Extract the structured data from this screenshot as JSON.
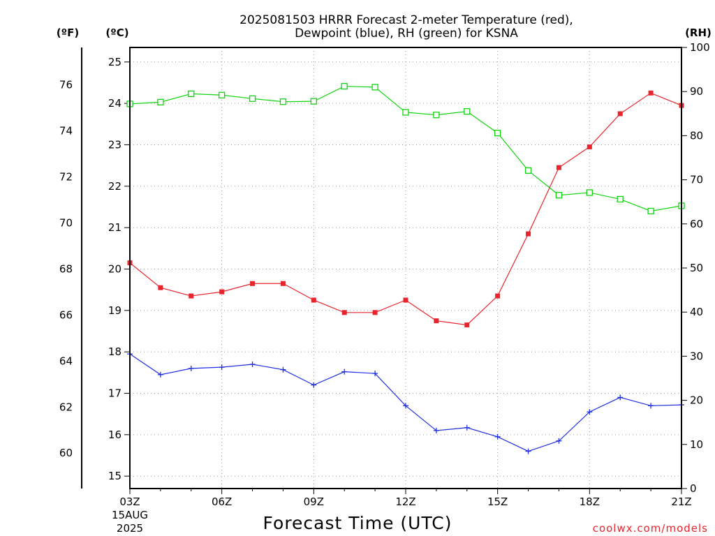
{
  "title_line1": "2025081503 HRRR Forecast 2-meter Temperature (red),",
  "title_line2": "Dewpoint (blue), RH (green) for KSNA",
  "units": {
    "fahrenheit": "(ºF)",
    "celsius": "(ºC)",
    "rh": "(RH)"
  },
  "x_axis_title": "Forecast Time (UTC)",
  "credit": "coolwx.com/models",
  "x_date_label": [
    "15AUG",
    "2025"
  ],
  "colors": {
    "temperature": "#e8242c",
    "dewpoint": "#1f2fe0",
    "rh": "#11d411"
  },
  "chart_data": {
    "type": "line",
    "x": [
      "03Z",
      "04Z",
      "05Z",
      "06Z",
      "07Z",
      "08Z",
      "09Z",
      "10Z",
      "11Z",
      "12Z",
      "13Z",
      "14Z",
      "15Z",
      "16Z",
      "17Z",
      "18Z",
      "19Z",
      "20Z",
      "21Z"
    ],
    "x_tick_labels": [
      "03Z",
      "06Z",
      "09Z",
      "12Z",
      "15Z",
      "18Z",
      "21Z"
    ],
    "series": [
      {
        "name": "Temperature (red)",
        "axis": "celsius",
        "marker": "filled-square",
        "values": [
          20.15,
          19.55,
          19.35,
          19.45,
          19.65,
          19.65,
          19.25,
          18.95,
          18.95,
          19.25,
          18.75,
          18.65,
          19.35,
          20.85,
          22.45,
          22.95,
          23.75,
          24.25,
          23.95
        ]
      },
      {
        "name": "Dewpoint (blue)",
        "axis": "celsius",
        "marker": "plus",
        "values": [
          17.95,
          17.45,
          17.6,
          17.63,
          17.7,
          17.57,
          17.2,
          17.52,
          17.48,
          16.7,
          16.1,
          16.17,
          15.95,
          15.6,
          15.85,
          16.55,
          16.9,
          16.7,
          16.72
        ]
      },
      {
        "name": "RH (green)",
        "axis": "rh",
        "marker": "open-square",
        "values": [
          87.2,
          87.6,
          89.5,
          89.2,
          88.4,
          87.7,
          87.8,
          91.2,
          91.0,
          85.3,
          84.7,
          85.5,
          80.6,
          72.1,
          66.5,
          67.1,
          65.6,
          62.9,
          64.1
        ]
      }
    ],
    "y_left_celsius": {
      "range": [
        14.7,
        25.35
      ],
      "ticks": [
        15,
        16,
        17,
        18,
        19,
        20,
        21,
        22,
        23,
        24,
        25
      ]
    },
    "y_left_fahrenheit": {
      "ticks": [
        60,
        62,
        64,
        66,
        68,
        70,
        72,
        74,
        76
      ]
    },
    "y_right_rh": {
      "range": [
        0,
        100
      ],
      "ticks": [
        0,
        10,
        20,
        30,
        40,
        50,
        60,
        70,
        80,
        90,
        100
      ]
    },
    "grid": true
  }
}
